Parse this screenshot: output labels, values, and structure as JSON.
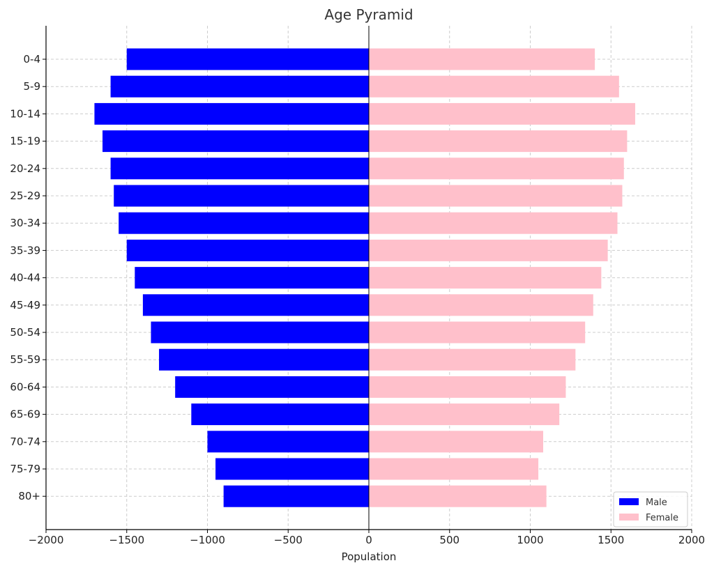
{
  "chart_data": {
    "type": "bar",
    "orientation": "horizontal",
    "title": "Age Pyramid",
    "xlabel": "Population",
    "ylabel": "",
    "xlim": [
      -2000,
      2000
    ],
    "xticks": [
      -2000,
      -1500,
      -1000,
      -500,
      0,
      500,
      1000,
      1500,
      2000
    ],
    "xtick_labels": [
      "−2000",
      "−1500",
      "−1000",
      "−500",
      "0",
      "500",
      "1000",
      "1500",
      "2000"
    ],
    "categories": [
      "0-4",
      "5-9",
      "10-14",
      "15-19",
      "20-24",
      "25-29",
      "30-34",
      "35-39",
      "40-44",
      "45-49",
      "50-54",
      "55-59",
      "60-64",
      "65-69",
      "70-74",
      "75-79",
      "80+"
    ],
    "series": [
      {
        "name": "Male",
        "color": "#0000ff",
        "values": [
          -1500,
          -1600,
          -1700,
          -1650,
          -1600,
          -1580,
          -1550,
          -1500,
          -1450,
          -1400,
          -1350,
          -1300,
          -1200,
          -1100,
          -1000,
          -950,
          -900
        ]
      },
      {
        "name": "Female",
        "color": "#ffc0cb",
        "values": [
          1400,
          1550,
          1650,
          1600,
          1580,
          1570,
          1540,
          1480,
          1440,
          1390,
          1340,
          1280,
          1220,
          1180,
          1080,
          1050,
          1100
        ]
      }
    ],
    "grid": true,
    "legend": "bottom-right"
  }
}
